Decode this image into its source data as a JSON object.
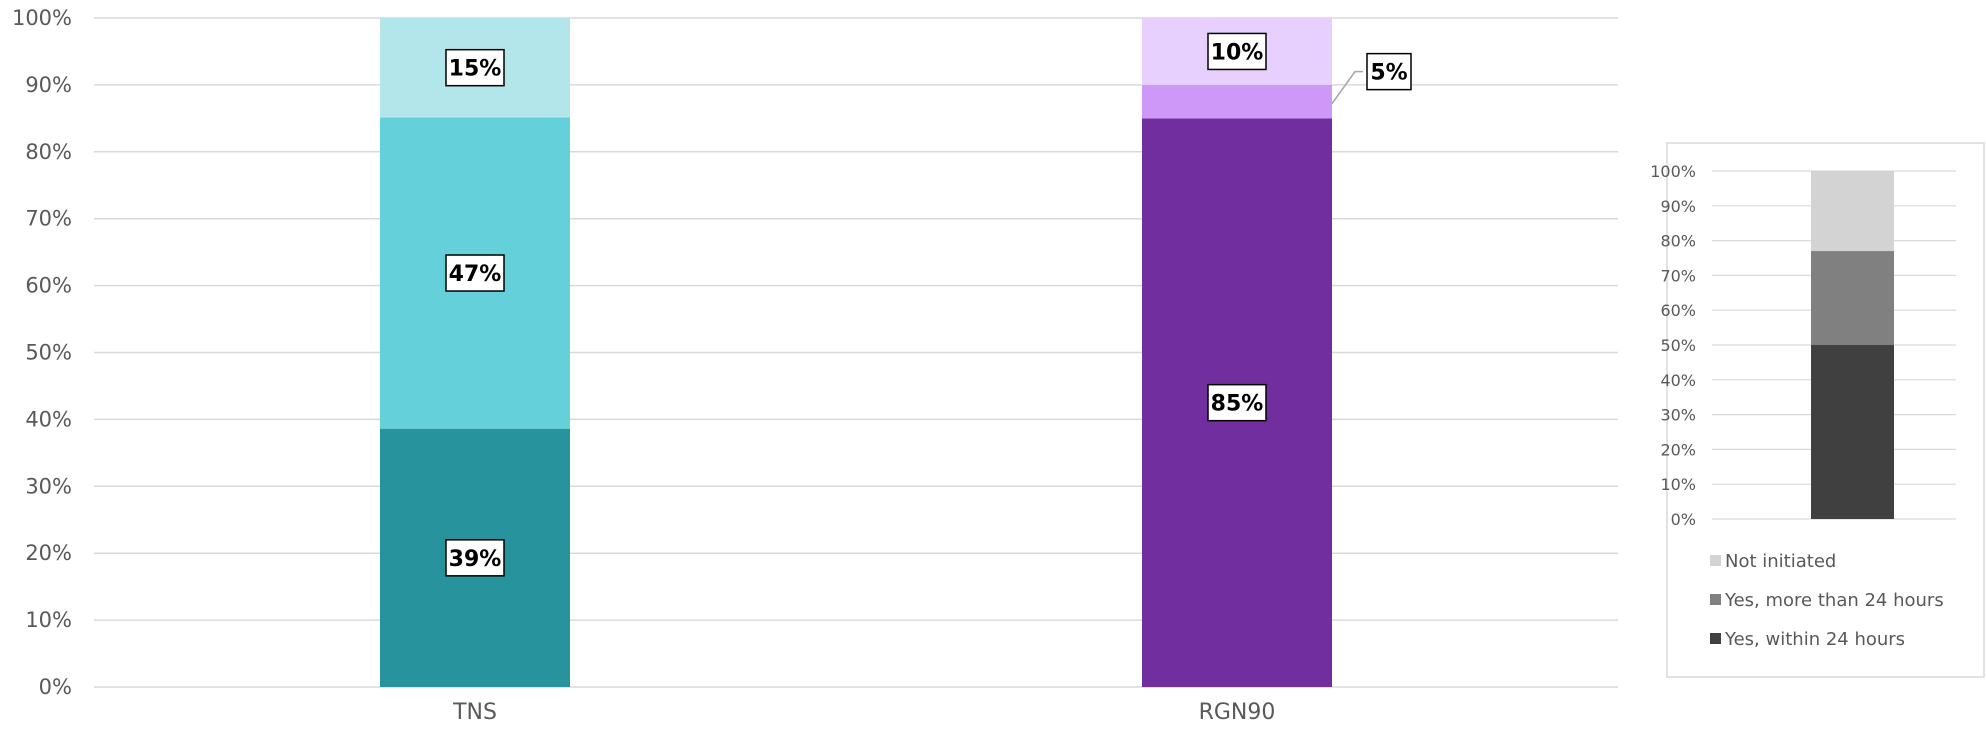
{
  "chart_data": {
    "type": "bar",
    "stacked": true,
    "categories": [
      "TNS",
      "RGN90"
    ],
    "ylim": [
      0,
      100
    ],
    "y_ticks": [
      "0%",
      "10%",
      "20%",
      "30%",
      "40%",
      "50%",
      "60%",
      "70%",
      "80%",
      "90%",
      "100%"
    ],
    "grid": true,
    "legend_position": "right",
    "bars": [
      {
        "category": "TNS",
        "segments": [
          {
            "series": "Yes, within 24 hours",
            "value": 39,
            "label": "39%",
            "color": "#27939C"
          },
          {
            "series": "Yes, more than 24 hours",
            "value": 47,
            "label": "47%",
            "color": "#64D0D9"
          },
          {
            "series": "Not initiated",
            "value": 15,
            "label": "15%",
            "color": "#B3E6EA"
          }
        ]
      },
      {
        "category": "RGN90",
        "segments": [
          {
            "series": "Yes, within 24 hours",
            "value": 85,
            "label": "85%",
            "color": "#702E9E"
          },
          {
            "series": "Yes, more than 24 hours",
            "value": 5,
            "label": "5%",
            "color": "#CD98F8"
          },
          {
            "series": "Not initiated",
            "value": 10,
            "label": "10%",
            "color": "#E8D0FE"
          }
        ]
      }
    ],
    "legend": {
      "ylim": [
        0,
        100
      ],
      "y_ticks": [
        "0%",
        "10%",
        "20%",
        "30%",
        "40%",
        "50%",
        "60%",
        "70%",
        "80%",
        "90%",
        "100%"
      ],
      "segments": [
        {
          "name": "Yes, within 24 hours",
          "value": 50,
          "color": "#404040"
        },
        {
          "name": "Yes, more than 24 hours",
          "value": 27,
          "color": "#808080"
        },
        {
          "name": "Not initiated",
          "value": 23,
          "color": "#D3D3D3"
        }
      ],
      "entries": [
        "Not initiated",
        "Yes, more than 24 hours",
        "Yes, within 24 hours"
      ]
    }
  }
}
